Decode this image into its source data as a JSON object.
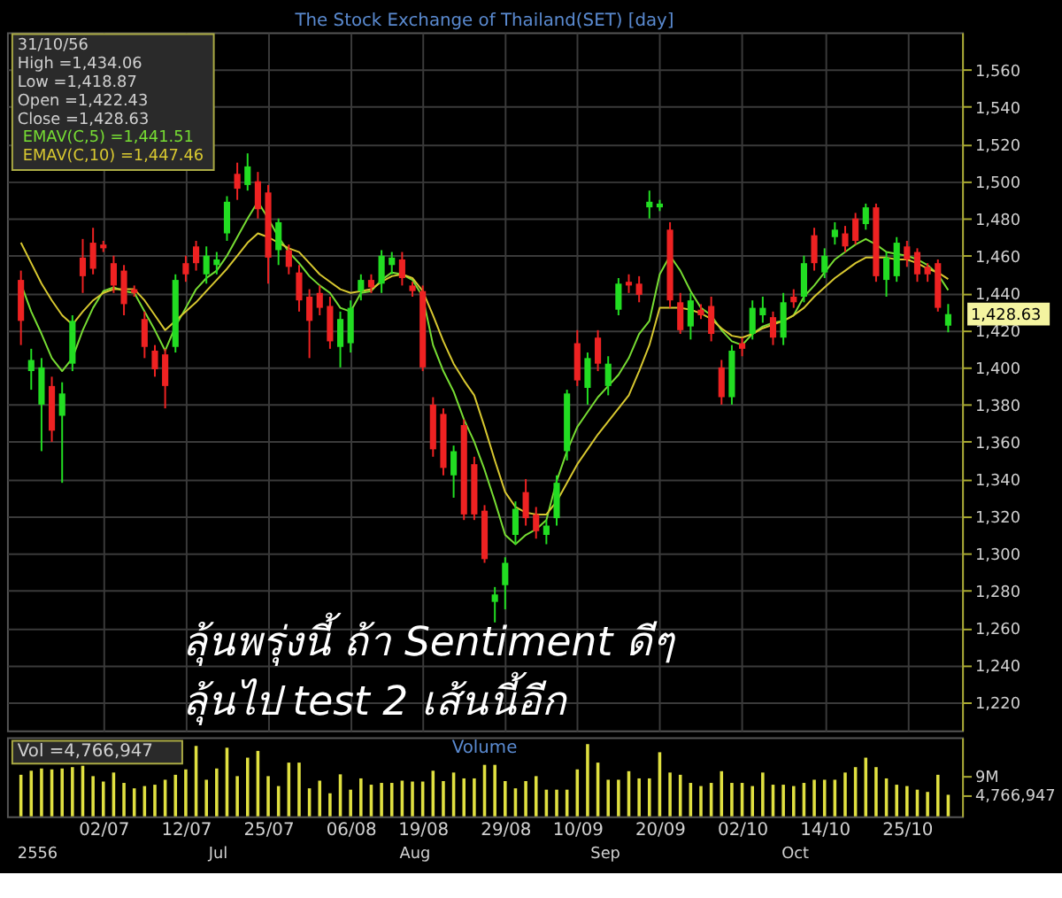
{
  "chart_data": [
    {
      "type": "candlestick",
      "title": "The Stock Exchange of Thailand(SET) [day]",
      "tick_labels": "y",
      "grid": true,
      "legend": "top left",
      "categories": [
        null,
        null,
        null,
        null,
        null,
        null,
        null,
        null,
        null,
        null,
        null,
        null,
        null,
        null,
        null,
        null,
        null,
        null,
        null,
        null,
        null,
        null,
        null,
        null,
        null,
        null,
        null,
        null,
        null,
        null,
        null,
        null,
        null,
        null,
        null,
        null,
        null,
        null,
        null,
        null,
        null,
        null,
        null,
        null,
        null,
        null,
        null,
        null,
        null,
        null,
        null,
        null,
        null,
        null,
        null,
        null,
        null,
        null,
        null,
        null,
        null,
        null,
        null,
        null,
        null,
        null,
        null,
        null,
        null,
        null,
        null,
        null,
        null,
        null,
        null,
        null,
        null,
        null,
        null,
        null,
        null,
        null,
        null,
        null,
        null,
        null,
        null,
        null,
        null,
        null,
        null
      ],
      "ylim": [
        1205,
        1580
      ],
      "yticks": [
        {
          "value": 1220,
          "label": "1,220"
        },
        {
          "value": 1240,
          "label": "1,240"
        },
        {
          "value": 1260,
          "label": "1,260"
        },
        {
          "value": 1280,
          "label": "1,280"
        },
        {
          "value": 1300,
          "label": "1,300"
        },
        {
          "value": 1320,
          "label": "1,320"
        },
        {
          "value": 1340,
          "label": "1,340"
        },
        {
          "value": 1360,
          "label": "1,360"
        },
        {
          "value": 1380,
          "label": "1,380"
        },
        {
          "value": 1400,
          "label": "1,400"
        },
        {
          "value": 1420,
          "label": "1,420"
        },
        {
          "value": 1440,
          "label": "1,440"
        },
        {
          "value": 1460,
          "label": "1,460"
        },
        {
          "value": 1480,
          "label": "1,480"
        },
        {
          "value": 1500,
          "label": "1,500"
        },
        {
          "value": 1520,
          "label": "1,520"
        },
        {
          "value": 1540,
          "label": "1,540"
        },
        {
          "value": 1560,
          "label": "1,560"
        }
      ],
      "ohlc": [
        [
          1447,
          1452,
          1412,
          1425
        ],
        [
          1398,
          1410,
          1388,
          1404
        ],
        [
          1380,
          1405,
          1355,
          1400
        ],
        [
          1390,
          1395,
          1360,
          1366
        ],
        [
          1374,
          1392,
          1338,
          1386
        ],
        [
          1402,
          1428,
          1398,
          1425
        ],
        [
          1459,
          1469,
          1440,
          1449
        ],
        [
          1467,
          1475,
          1450,
          1453
        ],
        [
          1466,
          1468,
          1462,
          1464
        ],
        [
          1456,
          1460,
          1440,
          1444
        ],
        [
          1452,
          1455,
          1428,
          1434
        ],
        [
          1442,
          1444,
          1438,
          1440
        ],
        [
          1426,
          1430,
          1405,
          1411
        ],
        [
          1409,
          1412,
          1395,
          1399
        ],
        [
          1407,
          1410,
          1378,
          1390
        ],
        [
          1411,
          1450,
          1408,
          1447
        ],
        [
          1456,
          1460,
          1446,
          1450
        ],
        [
          1465,
          1468,
          1452,
          1456
        ],
        [
          1450,
          1465,
          1445,
          1460
        ],
        [
          1455,
          1462,
          1450,
          1458
        ],
        [
          1472,
          1492,
          1468,
          1489
        ],
        [
          1504,
          1510,
          1490,
          1496
        ],
        [
          1498,
          1515,
          1495,
          1508
        ],
        [
          1500,
          1505,
          1480,
          1485
        ],
        [
          1494,
          1498,
          1445,
          1459
        ],
        [
          1463,
          1480,
          1455,
          1478
        ],
        [
          1463,
          1466,
          1450,
          1454
        ],
        [
          1451,
          1455,
          1430,
          1436
        ],
        [
          1438,
          1442,
          1405,
          1425
        ],
        [
          1440,
          1444,
          1428,
          1432
        ],
        [
          1433,
          1438,
          1410,
          1414
        ],
        [
          1411,
          1430,
          1400,
          1426
        ],
        [
          1413,
          1436,
          1408,
          1432
        ],
        [
          1441,
          1450,
          1436,
          1447
        ],
        [
          1447,
          1450,
          1440,
          1443
        ],
        [
          1445,
          1463,
          1440,
          1460
        ],
        [
          1455,
          1462,
          1450,
          1459
        ],
        [
          1458,
          1462,
          1444,
          1448
        ],
        [
          1444,
          1446,
          1438,
          1441
        ],
        [
          1441,
          1444,
          1398,
          1400
        ],
        [
          1380,
          1384,
          1352,
          1356
        ],
        [
          1375,
          1378,
          1342,
          1346
        ],
        [
          1342,
          1358,
          1330,
          1355
        ],
        [
          1369,
          1372,
          1318,
          1321
        ],
        [
          1348,
          1352,
          1318,
          1321
        ],
        [
          1323,
          1326,
          1295,
          1297
        ],
        [
          1274,
          1282,
          1263,
          1278
        ],
        [
          1283,
          1298,
          1270,
          1295
        ],
        [
          1310,
          1328,
          1305,
          1324
        ],
        [
          1333,
          1340,
          1315,
          1319
        ],
        [
          1321,
          1325,
          1308,
          1312
        ],
        [
          1310,
          1318,
          1305,
          1315
        ],
        [
          1319,
          1342,
          1315,
          1338
        ],
        [
          1355,
          1388,
          1350,
          1386
        ],
        [
          1413,
          1420,
          1390,
          1393
        ],
        [
          1389,
          1408,
          1380,
          1405
        ],
        [
          1416,
          1420,
          1398,
          1402
        ],
        [
          1390,
          1406,
          1385,
          1402
        ],
        [
          1431,
          1448,
          1428,
          1445
        ],
        [
          1446,
          1450,
          1440,
          1444
        ],
        [
          1445,
          1449,
          1435,
          1439
        ],
        [
          1486,
          1495,
          1480,
          1489
        ],
        [
          1486,
          1490,
          1484,
          1488
        ],
        [
          1474,
          1478,
          1432,
          1436
        ],
        [
          1435,
          1440,
          1418,
          1420
        ],
        [
          1422,
          1440,
          1415,
          1436
        ],
        [
          1431,
          1434,
          1426,
          1428
        ],
        [
          1433,
          1438,
          1414,
          1418
        ],
        [
          1400,
          1404,
          1380,
          1384
        ],
        [
          1384,
          1412,
          1380,
          1409
        ],
        [
          1413,
          1416,
          1406,
          1410
        ],
        [
          1418,
          1436,
          1415,
          1432
        ],
        [
          1428,
          1438,
          1424,
          1432
        ],
        [
          1427,
          1430,
          1412,
          1416
        ],
        [
          1416,
          1440,
          1412,
          1435
        ],
        [
          1438,
          1442,
          1432,
          1435
        ],
        [
          1438,
          1460,
          1435,
          1456
        ],
        [
          1471,
          1475,
          1452,
          1456
        ],
        [
          1451,
          1464,
          1448,
          1460
        ],
        [
          1470,
          1478,
          1466,
          1474
        ],
        [
          1472,
          1476,
          1462,
          1465
        ],
        [
          1480,
          1483,
          1466,
          1468
        ],
        [
          1477,
          1488,
          1474,
          1486
        ],
        [
          1486,
          1488,
          1446,
          1449
        ],
        [
          1447,
          1462,
          1438,
          1459
        ],
        [
          1449,
          1470,
          1446,
          1467
        ],
        [
          1465,
          1468,
          1454,
          1458
        ],
        [
          1462,
          1464,
          1446,
          1450
        ],
        [
          1454,
          1456,
          1446,
          1450
        ],
        [
          1456,
          1458,
          1430,
          1432
        ],
        [
          1422.43,
          1434.06,
          1418.87,
          1428.63
        ]
      ],
      "colors": [
        "#ee2222",
        "#22dd22",
        "#22dd22",
        "#ee2222",
        "#22dd22",
        "#22dd22",
        "#ee2222",
        "#ee2222",
        "#ee2222",
        "#ee2222",
        "#ee2222",
        "#ee2222",
        "#ee2222",
        "#ee2222",
        "#ee2222",
        "#22dd22",
        "#ee2222",
        "#ee2222",
        "#22dd22",
        "#22dd22",
        "#22dd22",
        "#ee2222",
        "#22dd22",
        "#ee2222",
        "#ee2222",
        "#22dd22",
        "#ee2222",
        "#ee2222",
        "#ee2222",
        "#ee2222",
        "#ee2222",
        "#22dd22",
        "#22dd22",
        "#22dd22",
        "#ee2222",
        "#22dd22",
        "#22dd22",
        "#ee2222",
        "#ee2222",
        "#ee2222",
        "#ee2222",
        "#ee2222",
        "#22dd22",
        "#ee2222",
        "#ee2222",
        "#ee2222",
        "#22dd22",
        "#22dd22",
        "#22dd22",
        "#ee2222",
        "#ee2222",
        "#22dd22",
        "#22dd22",
        "#22dd22",
        "#ee2222",
        "#22dd22",
        "#ee2222",
        "#22dd22",
        "#22dd22",
        "#ee2222",
        "#ee2222",
        "#22dd22",
        "#22dd22",
        "#ee2222",
        "#ee2222",
        "#22dd22",
        "#ee2222",
        "#ee2222",
        "#ee2222",
        "#22dd22",
        "#ee2222",
        "#22dd22",
        "#22dd22",
        "#ee2222",
        "#22dd22",
        "#ee2222",
        "#22dd22",
        "#ee2222",
        "#22dd22",
        "#22dd22",
        "#ee2222",
        "#ee2222",
        "#22dd22",
        "#ee2222",
        "#22dd22",
        "#22dd22",
        "#ee2222",
        "#ee2222",
        "#ee2222",
        "#ee2222",
        "#22dd22"
      ],
      "series": [
        {
          "name": "EMAV(C,5)  =1,441.51",
          "type": "line",
          "color": "#77dd33",
          "values": [
            1445,
            1430,
            1418,
            1405,
            1398,
            1405,
            1420,
            1432,
            1441,
            1443,
            1441,
            1440,
            1430,
            1420,
            1409,
            1422,
            1432,
            1442,
            1448,
            1452,
            1460,
            1470,
            1480,
            1489,
            1480,
            1470,
            1462,
            1456,
            1449,
            1444,
            1440,
            1432,
            1430,
            1440,
            1441,
            1447,
            1451,
            1450,
            1447,
            1438,
            1412,
            1398,
            1387,
            1372,
            1360,
            1345,
            1328,
            1310,
            1305,
            1310,
            1313,
            1318,
            1339,
            1355,
            1368,
            1376,
            1384,
            1390,
            1396,
            1405,
            1418,
            1425,
            1450,
            1460,
            1452,
            1441,
            1432,
            1428,
            1420,
            1414,
            1412,
            1418,
            1422,
            1424,
            1425,
            1428,
            1438,
            1444,
            1451,
            1458,
            1462,
            1466,
            1469,
            1466,
            1462,
            1461,
            1460,
            1458,
            1455,
            1450,
            1441.51
          ]
        },
        {
          "name": "EMAV(C,10)  =1,447.46",
          "type": "line",
          "color": "#d8c830",
          "values": [
            1467,
            1456,
            1445,
            1436,
            1428,
            1423,
            1430,
            1436,
            1440,
            1442,
            1442,
            1442,
            1436,
            1428,
            1420,
            1425,
            1430,
            1435,
            1441,
            1447,
            1453,
            1460,
            1467,
            1472,
            1470,
            1467,
            1464,
            1462,
            1456,
            1450,
            1446,
            1442,
            1440,
            1441,
            1442,
            1446,
            1449,
            1450,
            1448,
            1441,
            1428,
            1414,
            1402,
            1393,
            1385,
            1368,
            1350,
            1333,
            1325,
            1322,
            1321,
            1321,
            1328,
            1338,
            1348,
            1356,
            1364,
            1371,
            1378,
            1385,
            1398,
            1412,
            1432,
            1432,
            1432,
            1431,
            1429,
            1426,
            1421,
            1417,
            1416,
            1418,
            1421,
            1423,
            1425,
            1428,
            1432,
            1438,
            1443,
            1448,
            1452,
            1456,
            1459,
            1459,
            1459,
            1458,
            1458,
            1456,
            1453,
            1451,
            1447.46
          ]
        }
      ],
      "annotations": [
        "31/10/56",
        "High  =1,434.06",
        "Low  =1,418.87",
        "Open  =1,422.43",
        "Close  =1,428.63",
        "ลุ้นพรุ่งนี้ ถ้า Sentiment ดีๆ",
        "ลุ้นไป test 2 เส้นนี้อีก",
        "1,428.63"
      ]
    },
    {
      "type": "bar",
      "title": "Volume",
      "color": "#e0e040",
      "categories": [
        null,
        null,
        null,
        null,
        null,
        null,
        null,
        null,
        "02/07",
        null,
        null,
        null,
        null,
        null,
        null,
        null,
        "12/07",
        null,
        null,
        null,
        null,
        null,
        null,
        null,
        "25/07",
        null,
        null,
        null,
        null,
        null,
        null,
        null,
        "06/08",
        null,
        null,
        null,
        null,
        null,
        null,
        "19/08",
        null,
        null,
        null,
        null,
        null,
        null,
        null,
        "29/08",
        null,
        null,
        null,
        null,
        null,
        null,
        "10/09",
        null,
        null,
        null,
        null,
        null,
        null,
        null,
        "20/09",
        null,
        null,
        null,
        null,
        null,
        null,
        null,
        "02/10",
        null,
        null,
        null,
        null,
        null,
        null,
        null,
        "14/10",
        null,
        null,
        null,
        null,
        null,
        null,
        null,
        "25/10",
        null,
        null,
        null,
        null
      ],
      "ylim": [
        0,
        17500000
      ],
      "yticks": [
        {
          "value": 4766947,
          "label": "4,766,947"
        },
        {
          "value": 9000000,
          "label": "9M"
        }
      ],
      "values": [
        9200000,
        10100000,
        10600000,
        10400000,
        10600000,
        10900000,
        11200000,
        8900000,
        7700000,
        9700000,
        7400000,
        6200000,
        6700000,
        7000000,
        8100000,
        9200000,
        10400000,
        15600000,
        8100000,
        10600000,
        15200000,
        8900000,
        13000000,
        14500000,
        8900000,
        6700000,
        11900000,
        11900000,
        6200000,
        7900000,
        5100000,
        9300000,
        5900000,
        8400000,
        7000000,
        7400000,
        7400000,
        7900000,
        7700000,
        7700000,
        10100000,
        7800000,
        9700000,
        8400000,
        8400000,
        11400000,
        11400000,
        7800000,
        6200000,
        7800000,
        8900000,
        5900000,
        5900000,
        5900000,
        10400000,
        16000000,
        11900000,
        8100000,
        8100000,
        10000000,
        8400000,
        8400000,
        14200000,
        9700000,
        9200000,
        7400000,
        6700000,
        7400000,
        10000000,
        7400000,
        7400000,
        6700000,
        9700000,
        7000000,
        7000000,
        6700000,
        7400000,
        8100000,
        8100000,
        8100000,
        9700000,
        10900000,
        13000000,
        10900000,
        8400000,
        7000000,
        6700000,
        5900000,
        5400000,
        9200000,
        4766947
      ],
      "annotations": [
        "Vol   =4,766,947",
        "2556",
        "Jul",
        "Aug",
        "Sep",
        "Oct"
      ]
    }
  ]
}
